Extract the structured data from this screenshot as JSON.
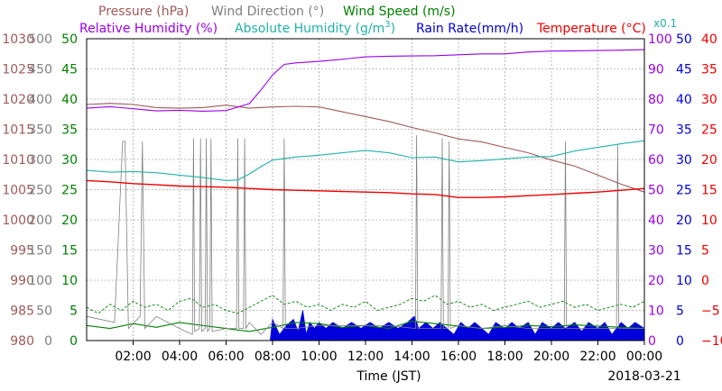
{
  "legend": {
    "pressure": "Pressure (hPa)",
    "wind_direction": "Wind Direction (°)",
    "wind_speed": "Wind Speed (m/s)",
    "relative_humidity": "Relative Humidity (%)",
    "absolute_humidity_prefix": "Absolute Humidity (g/m",
    "absolute_humidity_sup": "3",
    "absolute_humidity_suffix": ")",
    "rain_rate": "Rain Rate(mm/h)",
    "temperature": "Temperature (°C)",
    "scale_note": "x0.1"
  },
  "colors": {
    "pressure": "#9e5a5a",
    "wind_direction": "#808080",
    "wind_speed": "#008000",
    "relative_humidity": "#9900ee",
    "absolute_humidity": "#20b2aa",
    "rain_rate": "#0000dd",
    "temperature": "#ee0000",
    "grid": "#aaaaaa"
  },
  "chart_data": {
    "type": "line",
    "date": "2018-03-21",
    "xlabel": "Time (JST)",
    "x_range_hours": [
      0,
      24
    ],
    "x_ticks": [
      "02:00",
      "04:00",
      "06:00",
      "08:00",
      "10:00",
      "12:00",
      "14:00",
      "16:00",
      "18:00",
      "20:00",
      "22:00",
      "00:00"
    ],
    "grid": true,
    "axes": {
      "pressure": {
        "range": [
          980,
          1030
        ],
        "ticks": [
          "1030",
          "1025",
          "1020",
          "1015",
          "1010",
          "1005",
          "1000",
          "995",
          "990",
          "985",
          "980"
        ]
      },
      "wind_direction": {
        "range": [
          0,
          500
        ],
        "ticks": [
          "500",
          "450",
          "400",
          "350",
          "300",
          "250",
          "200",
          "150",
          "100",
          "50",
          "0"
        ]
      },
      "wind_speed": {
        "range": [
          0,
          50
        ],
        "ticks": [
          "50",
          "45",
          "40",
          "35",
          "30",
          "25",
          "20",
          "15",
          "10",
          "5",
          "0"
        ]
      },
      "relative_humidity": {
        "range": [
          0,
          100
        ],
        "ticks": [
          "100",
          "90",
          "80",
          "70",
          "60",
          "50",
          "40",
          "30",
          "20",
          "10",
          "0"
        ]
      },
      "rain_rate": {
        "range": [
          0,
          50
        ],
        "ticks": [
          "50",
          "45",
          "40",
          "35",
          "30",
          "25",
          "20",
          "15",
          "10",
          "5",
          "0"
        ]
      },
      "temperature": {
        "range": [
          -10,
          40
        ],
        "ticks": [
          "40",
          "35",
          "30",
          "25",
          "20",
          "15",
          "10",
          "5",
          "0",
          "−5",
          "−10"
        ]
      }
    },
    "series": [
      {
        "name": "Pressure (hPa)",
        "axis": "pressure",
        "x": [
          0,
          1,
          2,
          3,
          4,
          5,
          6,
          7,
          8,
          9,
          10,
          11,
          12,
          13,
          14,
          15,
          16,
          17,
          18,
          19,
          20,
          21,
          22,
          23,
          24
        ],
        "y": [
          1019.1,
          1019.3,
          1019.1,
          1018.6,
          1018.5,
          1018.6,
          1019.0,
          1018.5,
          1018.7,
          1018.8,
          1018.7,
          1017.9,
          1017.1,
          1016.3,
          1015.3,
          1014.4,
          1013.4,
          1012.9,
          1012.0,
          1011.1,
          1009.9,
          1008.9,
          1007.4,
          1005.9,
          1004.6
        ]
      },
      {
        "name": "Absolute Humidity (g/m3)",
        "axis": "wind_speed",
        "x": [
          0,
          1,
          2,
          3,
          4,
          5,
          6,
          6.5,
          7,
          7.5,
          8,
          9,
          10,
          11,
          12,
          13,
          14,
          15,
          16,
          17,
          18,
          19,
          20,
          21,
          22,
          23,
          24
        ],
        "y": [
          28.2,
          27.9,
          28.0,
          27.8,
          27.4,
          27.0,
          26.5,
          26.6,
          27.6,
          28.8,
          29.9,
          30.4,
          30.7,
          31.1,
          31.5,
          31.1,
          30.3,
          30.4,
          29.6,
          29.8,
          30.1,
          30.4,
          30.5,
          31.4,
          32.0,
          32.6,
          33.1
        ]
      },
      {
        "name": "Relative Humidity (%)",
        "axis": "relative_humidity",
        "x": [
          0,
          1,
          2,
          3,
          4,
          5,
          6,
          7,
          7.5,
          8,
          8.5,
          9,
          10,
          11,
          12,
          13,
          14,
          15,
          16,
          17,
          18,
          19,
          20,
          21,
          22,
          23,
          24
        ],
        "y": [
          77.0,
          77.5,
          76.8,
          76.1,
          76.3,
          76.0,
          76.2,
          78.5,
          83.0,
          88.0,
          91.5,
          92.0,
          92.5,
          93.2,
          94.0,
          94.2,
          94.3,
          94.4,
          94.7,
          95.0,
          95.0,
          95.6,
          95.9,
          96.0,
          96.1,
          96.2,
          96.4
        ]
      },
      {
        "name": "Temperature (°C)",
        "axis": "temperature",
        "x": [
          0,
          1,
          2,
          3,
          4,
          5,
          6,
          7,
          8,
          9,
          10,
          11,
          12,
          13,
          14,
          15,
          16,
          17,
          18,
          19,
          20,
          21,
          22,
          23,
          24
        ],
        "y": [
          16.5,
          16.3,
          16.0,
          15.8,
          15.6,
          15.5,
          15.4,
          15.2,
          15.0,
          14.9,
          14.8,
          14.7,
          14.6,
          14.5,
          14.3,
          14.2,
          13.7,
          13.7,
          13.8,
          14.0,
          14.2,
          14.4,
          14.6,
          14.9,
          15.2
        ]
      },
      {
        "name": "Wind Direction (°)",
        "axis": "wind_direction",
        "x": [
          0,
          1.2,
          1.55,
          1.65,
          1.8,
          2.3,
          2.4,
          2.5,
          3,
          4,
          4.55,
          4.6,
          4.65,
          4.85,
          4.9,
          4.95,
          5.1,
          5.15,
          5.2,
          5.3,
          5.35,
          5.4,
          6,
          6.45,
          6.5,
          6.55,
          6.75,
          6.8,
          6.85,
          7,
          7.5,
          8,
          8.45,
          8.5,
          8.55,
          9,
          10,
          11,
          12,
          13,
          14.15,
          14.2,
          14.25,
          15,
          15.25,
          15.3,
          15.35,
          15.55,
          15.6,
          15.65,
          16,
          17,
          18,
          19,
          20,
          20.55,
          20.6,
          20.65,
          21,
          22,
          22.8,
          22.85,
          22.9,
          23.5,
          24
        ],
        "y": [
          40,
          30,
          330,
          330,
          20,
          40,
          330,
          20,
          40,
          20,
          10,
          335,
          15,
          20,
          335,
          15,
          20,
          335,
          15,
          20,
          335,
          15,
          20,
          20,
          335,
          20,
          20,
          335,
          20,
          30,
          10,
          30,
          20,
          335,
          20,
          20,
          25,
          25,
          25,
          25,
          20,
          340,
          20,
          20,
          20,
          335,
          20,
          20,
          330,
          20,
          25,
          20,
          25,
          20,
          20,
          20,
          330,
          20,
          20,
          20,
          20,
          325,
          20,
          20,
          20
        ]
      },
      {
        "name": "Wind Speed (m/s)",
        "axis": "wind_speed",
        "x": [
          0,
          1,
          2,
          3,
          4,
          5,
          6,
          7,
          8,
          9,
          10,
          11,
          12,
          13,
          14,
          15,
          16,
          17,
          18,
          19,
          20,
          21,
          22,
          23,
          24
        ],
        "y": [
          2.5,
          2.0,
          2.8,
          2.2,
          3.0,
          2.5,
          2.0,
          1.5,
          2.2,
          3.0,
          2.8,
          2.2,
          2.5,
          2.0,
          3.2,
          2.8,
          2.4,
          2.0,
          2.2,
          2.5,
          2.3,
          2.6,
          2.4,
          2.2,
          2.0
        ]
      },
      {
        "name": "Wind Speed gust",
        "axis": "wind_speed",
        "x": [
          0,
          0.5,
          1,
          1.5,
          2,
          2.5,
          3,
          3.5,
          4,
          4.5,
          5,
          5.5,
          6,
          6.5,
          7,
          7.5,
          8,
          8.5,
          9,
          9.5,
          10,
          10.5,
          11,
          11.5,
          12,
          12.5,
          13,
          13.5,
          14,
          14.5,
          15,
          15.5,
          16,
          16.5,
          17,
          17.5,
          18,
          18.5,
          19,
          19.5,
          20,
          20.5,
          21,
          21.5,
          22,
          22.5,
          23,
          23.5,
          24
        ],
        "y": [
          5.5,
          4.5,
          6.0,
          5.0,
          6.5,
          5.5,
          6.0,
          5.0,
          6.5,
          7.0,
          5.5,
          6.0,
          5.0,
          4.5,
          5.5,
          6.5,
          7.5,
          6.0,
          6.5,
          5.5,
          6.0,
          5.0,
          6.0,
          5.5,
          6.5,
          5.0,
          5.5,
          6.0,
          7.0,
          6.5,
          7.5,
          6.0,
          6.5,
          5.5,
          6.0,
          5.0,
          5.5,
          6.0,
          6.5,
          5.5,
          6.0,
          6.5,
          5.5,
          6.0,
          5.0,
          5.5,
          6.0,
          5.5,
          6.5
        ]
      },
      {
        "name": "Rain Rate(mm/h)",
        "axis": "rain_rate",
        "x": [
          0,
          7.9,
          8.0,
          8.3,
          8.6,
          8.9,
          9.1,
          9.3,
          9.45,
          9.6,
          9.8,
          10.0,
          10.3,
          10.6,
          11.0,
          11.4,
          11.8,
          12.2,
          12.6,
          13.0,
          13.4,
          13.8,
          14.1,
          14.3,
          14.6,
          14.9,
          15.2,
          15.5,
          15.8,
          16.1,
          16.4,
          16.7,
          17.0,
          17.3,
          17.6,
          18.0,
          18.3,
          18.6,
          19.0,
          19.3,
          19.6,
          20.0,
          20.3,
          20.6,
          21.0,
          21.3,
          21.6,
          22.0,
          22.3,
          22.6,
          23.0,
          23.3,
          23.6,
          24
        ],
        "y": [
          0,
          0,
          3.5,
          1.0,
          2.5,
          3.5,
          1.5,
          5.0,
          1.0,
          3.0,
          2.0,
          3.0,
          2.0,
          3.0,
          2.0,
          3.0,
          2.0,
          3.0,
          2.0,
          3.0,
          2.0,
          3.0,
          4.0,
          2.0,
          3.0,
          2.0,
          3.0,
          2.0,
          1.0,
          3.0,
          2.0,
          3.0,
          2.0,
          1.0,
          3.0,
          2.0,
          3.0,
          2.0,
          3.0,
          1.0,
          3.0,
          2.0,
          3.0,
          2.0,
          3.0,
          1.5,
          3.0,
          2.0,
          3.0,
          1.0,
          3.0,
          2.0,
          3.0,
          2.0
        ]
      }
    ]
  }
}
